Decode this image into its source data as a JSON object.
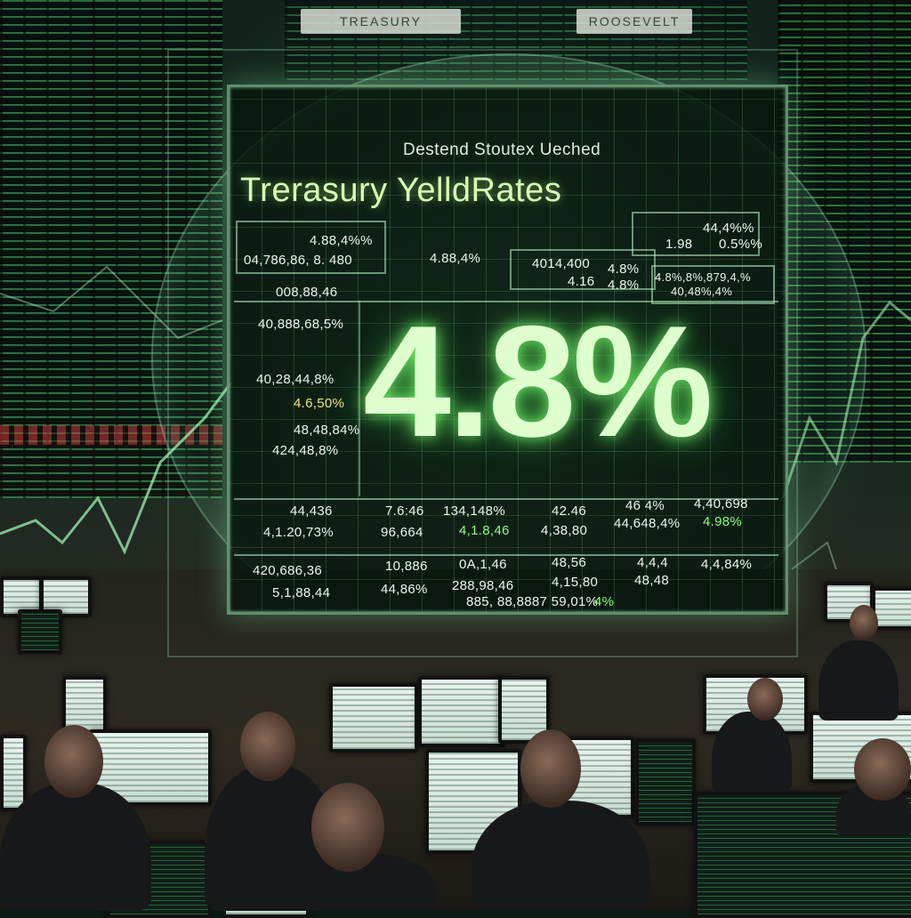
{
  "banners": {
    "top_left": "TREASURY",
    "top_right": "ROOSEVELT"
  },
  "panel": {
    "subtitle": "Destend Stoutex Ueched",
    "title": "Trerasury YelldRates",
    "headline_value": "4.8%",
    "top_row": {
      "box1_line1": "4.88,4%%",
      "box1_line2": "04,786,86, 8.   480",
      "mid_value": "4.88,4%",
      "box2_line1": "4014,400",
      "box2_line2": "4.16",
      "box3_line1": "4.8%",
      "box3_line2": "4.8%",
      "right_top": "44,4%%",
      "right_sub_a": "1.98",
      "right_sub_b": "0.5%%",
      "right_box_line1": "4.8%,8%,879,4,%",
      "right_box_line2": "40,48%,4%"
    },
    "left_column": [
      {
        "text": "008,88,46",
        "tone": "white"
      },
      {
        "text": "40,888,68,5%",
        "tone": "white"
      },
      {
        "text": "40,28,44,8%",
        "tone": "white"
      },
      {
        "text": "4.6,50%",
        "tone": "yellow"
      },
      {
        "text": "48,48,84%",
        "tone": "white"
      },
      {
        "text": "424,48,8%",
        "tone": "white"
      }
    ],
    "bottom_row1": [
      {
        "text": "44,436",
        "tone": "white"
      },
      {
        "text": "7.6:46",
        "tone": "white"
      },
      {
        "text": "134,148%",
        "tone": "white"
      },
      {
        "text": "42.46",
        "tone": "white"
      },
      {
        "text": "46 4%",
        "tone": "white"
      },
      {
        "text": "4,40,698",
        "tone": "white"
      }
    ],
    "bottom_row1b": [
      {
        "text": "4,1.20,73%",
        "tone": "white"
      },
      {
        "text": "96,664",
        "tone": "white"
      },
      {
        "text": "4,1.8,46",
        "tone": "green"
      },
      {
        "text": "4,38,80",
        "tone": "white"
      },
      {
        "text": "44,648,4%",
        "tone": "white"
      },
      {
        "text": "4.98%",
        "tone": "green"
      }
    ],
    "bottom_row2": [
      {
        "text": "420,686,36",
        "tone": "white"
      },
      {
        "text": "10,886",
        "tone": "white"
      },
      {
        "text": "0A,1,46",
        "tone": "white"
      },
      {
        "text": "48,56",
        "tone": "white"
      },
      {
        "text": "4,4,4",
        "tone": "white"
      },
      {
        "text": "4,4,84%",
        "tone": "white"
      }
    ],
    "bottom_row2b": [
      {
        "text": "5,1,88,44",
        "tone": "white"
      },
      {
        "text": "44,86%",
        "tone": "white"
      },
      {
        "text": "288,98,46",
        "tone": "white"
      },
      {
        "text": "4,15,80",
        "tone": "white"
      },
      {
        "text": "48,48",
        "tone": "white"
      }
    ],
    "footer_text": "885, 88,8887 59,01%",
    "footer_tail": "4%"
  },
  "colors": {
    "glow_green": "#8cff7a",
    "panel_bg": "#06160e",
    "headline": "#dfffcf"
  }
}
